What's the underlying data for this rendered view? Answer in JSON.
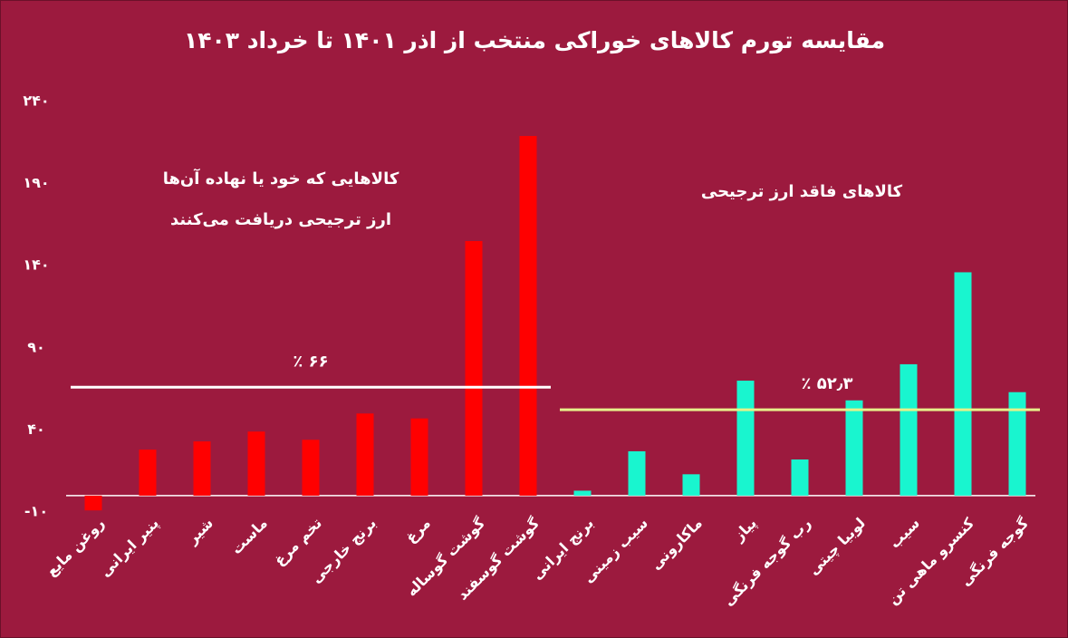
{
  "chart_data": {
    "type": "bar",
    "title": "مقایسه تورم کالاهای خوراکی منتخب از اذر ۱۴۰۱ تا خرداد ۱۴۰۳",
    "annotations": [
      "کالاهایی که خود یا نهاده آن‌ها",
      "ارز ترجیحی دریافت می‌کنند",
      "کالاهای فاقد ارز ترجیحی"
    ],
    "categories": [
      "روغن مایع",
      "پنیر ایرانی",
      "شیر",
      "ماست",
      "تخم مرغ",
      "برنج خارجی",
      "مرغ",
      "گوشت گوساله",
      "گوشت گوسفند",
      "برنج ایرانی",
      "سیب زمینی",
      "ماکارونی",
      "پیاز",
      "رب گوجه فرنگی",
      "لوبیا چیتی",
      "سیب",
      "کنسرو ماهی تن",
      "گوجه فرنگی"
    ],
    "values": [
      -9,
      28,
      33,
      39,
      34,
      50,
      47,
      155,
      219,
      3,
      27,
      13,
      70,
      22,
      58,
      80,
      136,
      63
    ],
    "colors": [
      "#ff0000",
      "#ff0000",
      "#ff0000",
      "#ff0000",
      "#ff0000",
      "#ff0000",
      "#ff0000",
      "#ff0000",
      "#ff0000",
      "#19f5cf",
      "#19f5cf",
      "#19f5cf",
      "#19f5cf",
      "#19f5cf",
      "#19f5cf",
      "#19f5cf",
      "#19f5cf",
      "#19f5cf"
    ],
    "reference_lines": [
      {
        "value": 66,
        "label": "٪ ۶۶",
        "color": "#ffffff",
        "range": [
          0,
          8
        ]
      },
      {
        "value": 52.3,
        "label": "٪ ۵۲٫۳",
        "color": "#e6f08a",
        "range": [
          9,
          17
        ]
      }
    ],
    "ylim": [
      -10,
      240
    ],
    "yticks": [
      {
        "value": -10,
        "label": "-۱۰"
      },
      {
        "value": 40,
        "label": "۴۰"
      },
      {
        "value": 90,
        "label": "۹۰"
      },
      {
        "value": 140,
        "label": "۱۴۰"
      },
      {
        "value": 190,
        "label": "۱۹۰"
      },
      {
        "value": 240,
        "label": "۲۴۰"
      }
    ]
  }
}
